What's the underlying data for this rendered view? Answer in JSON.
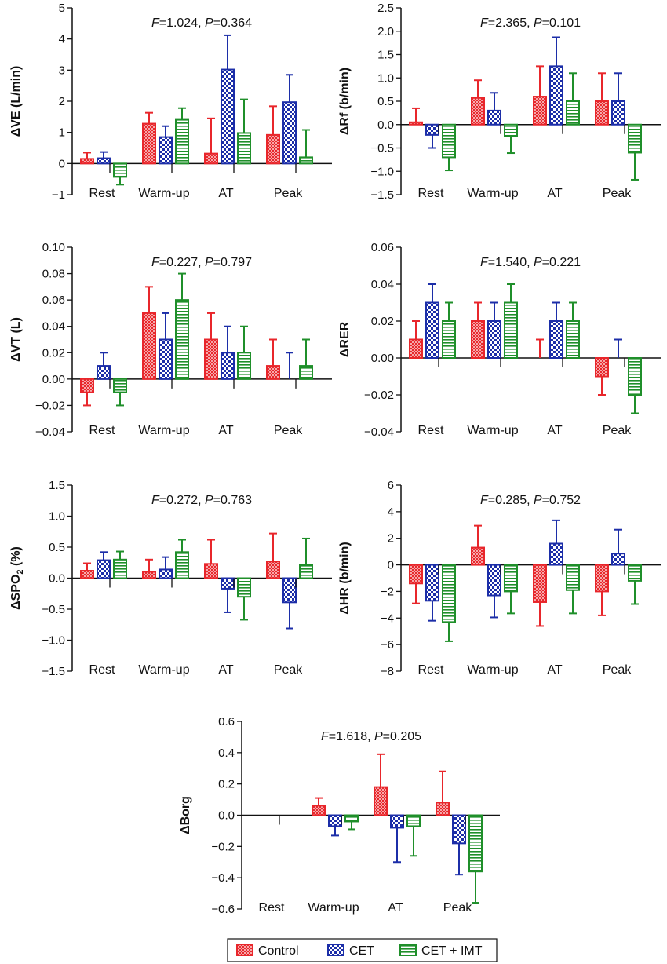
{
  "legend": {
    "items": [
      {
        "label": "Control",
        "color": "#e8262b",
        "pattern": "crosshatch"
      },
      {
        "label": "CET",
        "color": "#1c2ea8",
        "pattern": "checker"
      },
      {
        "label": "CET + IMT",
        "color": "#1f8f2a",
        "pattern": "horizontal"
      }
    ]
  },
  "chart_data": [
    {
      "type": "bar",
      "ylabel": "ΔVE (L/min)",
      "stat": {
        "f_label": "F",
        "f_value": "=1.024, ",
        "p_label": "P",
        "p_value": "=0.364"
      },
      "categories": [
        "Rest",
        "Warm-up",
        "AT",
        "Peak"
      ],
      "ylim": [
        -1,
        5
      ],
      "yticks": [
        -1,
        0,
        1,
        2,
        3,
        4,
        5
      ],
      "ytick_labels": [
        "−1",
        "0",
        "1",
        "2",
        "3",
        "4",
        "5"
      ],
      "series": [
        {
          "name": "Control",
          "values": [
            0.15,
            1.28,
            0.32,
            0.92
          ],
          "errors": [
            0.2,
            0.35,
            1.13,
            0.92
          ]
        },
        {
          "name": "CET",
          "values": [
            0.17,
            0.85,
            3.02,
            1.97
          ],
          "errors": [
            0.2,
            0.35,
            1.1,
            0.88
          ]
        },
        {
          "name": "CET + IMT",
          "values": [
            -0.43,
            1.43,
            0.98,
            0.2
          ],
          "errors": [
            0.25,
            0.35,
            1.08,
            0.88
          ]
        }
      ]
    },
    {
      "type": "bar",
      "ylabel": "ΔRf (b/min)",
      "stat": {
        "f_label": "F",
        "f_value": "=2.365, ",
        "p_label": "P",
        "p_value": "=0.101"
      },
      "categories": [
        "Rest",
        "Warm-up",
        "AT",
        "Peak"
      ],
      "ylim": [
        -1.5,
        2.5
      ],
      "yticks": [
        -1.5,
        -1.0,
        -0.5,
        0.0,
        0.5,
        1.0,
        1.5,
        2.0,
        2.5
      ],
      "ytick_labels": [
        "−1.5",
        "−1.0",
        "−0.5",
        "0.0",
        "0.5",
        "1.0",
        "1.5",
        "2.0",
        "2.5"
      ],
      "series": [
        {
          "name": "Control",
          "values": [
            0.05,
            0.57,
            0.6,
            0.5
          ],
          "errors": [
            0.3,
            0.38,
            0.65,
            0.6
          ]
        },
        {
          "name": "CET",
          "values": [
            -0.22,
            0.3,
            1.25,
            0.5
          ],
          "errors": [
            0.28,
            0.38,
            0.62,
            0.6
          ]
        },
        {
          "name": "CET + IMT",
          "values": [
            -0.7,
            -0.25,
            0.5,
            -0.6
          ],
          "errors": [
            0.28,
            0.36,
            0.6,
            0.58
          ]
        }
      ]
    },
    {
      "type": "bar",
      "ylabel": "ΔVT (L)",
      "stat": {
        "f_label": "F",
        "f_value": "=0.227, ",
        "p_label": "P",
        "p_value": "=0.797"
      },
      "categories": [
        "Rest",
        "Warm-up",
        "AT",
        "Peak"
      ],
      "ylim": [
        -0.04,
        0.1
      ],
      "yticks": [
        -0.04,
        -0.02,
        0.0,
        0.02,
        0.04,
        0.06,
        0.08,
        0.1
      ],
      "ytick_labels": [
        "−0.04",
        "−0.02",
        "0.00",
        "0.02",
        "0.04",
        "0.06",
        "0.08",
        "0.10"
      ],
      "series": [
        {
          "name": "Control",
          "values": [
            -0.01,
            0.05,
            0.03,
            0.01
          ],
          "errors": [
            0.01,
            0.02,
            0.02,
            0.02
          ]
        },
        {
          "name": "CET",
          "values": [
            0.01,
            0.03,
            0.02,
            0.0
          ],
          "errors": [
            0.01,
            0.02,
            0.02,
            0.02
          ]
        },
        {
          "name": "CET + IMT",
          "values": [
            -0.01,
            0.06,
            0.02,
            0.01
          ],
          "errors": [
            0.01,
            0.02,
            0.02,
            0.02
          ]
        }
      ]
    },
    {
      "type": "bar",
      "ylabel": "ΔRER",
      "stat": {
        "f_label": "F",
        "f_value": "=1.540, ",
        "p_label": "P",
        "p_value": "=0.221"
      },
      "categories": [
        "Rest",
        "Warm-up",
        "AT",
        "Peak"
      ],
      "ylim": [
        -0.04,
        0.06
      ],
      "yticks": [
        -0.04,
        -0.02,
        0.0,
        0.02,
        0.04,
        0.06
      ],
      "ytick_labels": [
        "−0.04",
        "−0.02",
        "0.00",
        "0.02",
        "0.04",
        "0.06"
      ],
      "series": [
        {
          "name": "Control",
          "values": [
            0.01,
            0.02,
            0.0,
            -0.01
          ],
          "errors": [
            0.01,
            0.01,
            0.01,
            0.01
          ]
        },
        {
          "name": "CET",
          "values": [
            0.03,
            0.02,
            0.02,
            0.0
          ],
          "errors": [
            0.01,
            0.01,
            0.01,
            0.01
          ]
        },
        {
          "name": "CET + IMT",
          "values": [
            0.02,
            0.03,
            0.02,
            -0.02
          ],
          "errors": [
            0.01,
            0.01,
            0.01,
            0.01
          ]
        }
      ]
    },
    {
      "type": "bar",
      "ylabel_main": "ΔSPO",
      "ylabel_sub": "2",
      "ylabel_tail": " (%)",
      "stat": {
        "f_label": "F",
        "f_value": "=0.272, ",
        "p_label": "P",
        "p_value": "=0.763"
      },
      "categories": [
        "Rest",
        "Warm-up",
        "AT",
        "Peak"
      ],
      "ylim": [
        -1.5,
        1.5
      ],
      "yticks": [
        -1.5,
        -1.0,
        -0.5,
        0.0,
        0.5,
        1.0,
        1.5
      ],
      "ytick_labels": [
        "−1.5",
        "−1.0",
        "−0.5",
        "0.0",
        "0.5",
        "1.0",
        "1.5"
      ],
      "series": [
        {
          "name": "Control",
          "values": [
            0.12,
            0.1,
            0.23,
            0.27
          ],
          "errors": [
            0.12,
            0.2,
            0.39,
            0.45
          ]
        },
        {
          "name": "CET",
          "values": [
            0.29,
            0.14,
            -0.17,
            -0.39
          ],
          "errors": [
            0.13,
            0.2,
            0.38,
            0.42
          ]
        },
        {
          "name": "CET + IMT",
          "values": [
            0.3,
            0.42,
            -0.3,
            0.22
          ],
          "errors": [
            0.13,
            0.2,
            0.37,
            0.42
          ]
        }
      ]
    },
    {
      "type": "bar",
      "ylabel": "ΔHR (b/min)",
      "stat": {
        "f_label": "F",
        "f_value": "=0.285, ",
        "p_label": "P",
        "p_value": "=0.752"
      },
      "categories": [
        "Rest",
        "Warm-up",
        "AT",
        "Peak"
      ],
      "ylim": [
        -8,
        6
      ],
      "yticks": [
        -8,
        -6,
        -4,
        -2,
        0,
        2,
        4,
        6
      ],
      "ytick_labels": [
        "−8",
        "−6",
        "−4",
        "−2",
        "0",
        "2",
        "4",
        "6"
      ],
      "series": [
        {
          "name": "Control",
          "values": [
            -1.4,
            1.3,
            -2.8,
            -2.0
          ],
          "errors": [
            1.5,
            1.65,
            1.8,
            1.8
          ]
        },
        {
          "name": "CET",
          "values": [
            -2.7,
            -2.3,
            1.6,
            0.85
          ],
          "errors": [
            1.5,
            1.65,
            1.75,
            1.8
          ]
        },
        {
          "name": "CET + IMT",
          "values": [
            -4.3,
            -2.0,
            -1.9,
            -1.2
          ],
          "errors": [
            1.45,
            1.65,
            1.75,
            1.75
          ]
        }
      ]
    },
    {
      "type": "bar",
      "ylabel": "ΔBorg",
      "stat": {
        "f_label": "F",
        "f_value": "=1.618, ",
        "p_label": "P",
        "p_value": "=0.205"
      },
      "categories": [
        "Rest",
        "Warm-up",
        "AT",
        "Peak"
      ],
      "ylim": [
        -0.6,
        0.6
      ],
      "yticks": [
        -0.6,
        -0.4,
        -0.2,
        0.0,
        0.2,
        0.4,
        0.6
      ],
      "ytick_labels": [
        "−0.6",
        "−0.4",
        "−0.2",
        "0.0",
        "0.2",
        "0.4",
        "0.6"
      ],
      "series": [
        {
          "name": "Control",
          "values": [
            0.0,
            0.06,
            0.18,
            0.08
          ],
          "errors": [
            0.0,
            0.05,
            0.21,
            0.2
          ]
        },
        {
          "name": "CET",
          "values": [
            0.0,
            -0.07,
            -0.08,
            -0.18
          ],
          "errors": [
            0.0,
            0.06,
            0.22,
            0.2
          ]
        },
        {
          "name": "CET + IMT",
          "values": [
            0.0,
            -0.04,
            -0.07,
            -0.36
          ],
          "errors": [
            0.0,
            0.05,
            0.19,
            0.2
          ]
        }
      ]
    }
  ]
}
